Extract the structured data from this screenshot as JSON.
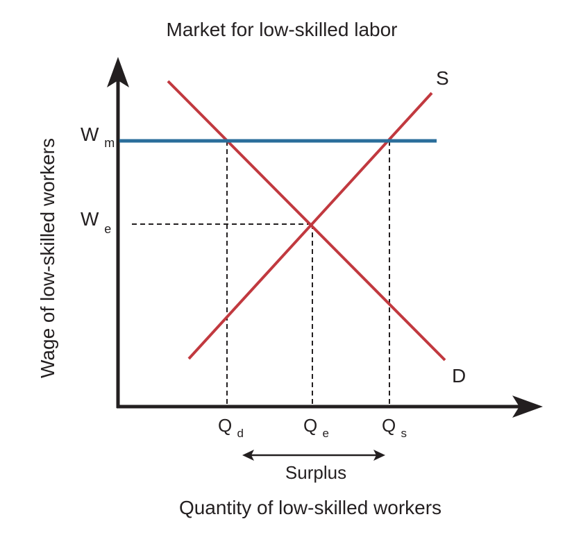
{
  "title": "Market for low-skilled labor",
  "axes": {
    "y_label": "Wage of low-skilled workers",
    "x_label": "Quantity of low-skilled workers"
  },
  "curves": {
    "supply_label": "S",
    "demand_label": "D",
    "supply_color": "#c1393f",
    "demand_color": "#c1393f",
    "min_wage_color": "#2a6e9b"
  },
  "wage_levels": {
    "minimum": {
      "main": "W",
      "sub": "m"
    },
    "equilibrium": {
      "main": "W",
      "sub": "e"
    }
  },
  "quantities": {
    "demanded": {
      "main": "Q",
      "sub": "d"
    },
    "equilibrium": {
      "main": "Q",
      "sub": "e"
    },
    "supplied": {
      "main": "Q",
      "sub": "s"
    }
  },
  "surplus_label": "Surplus",
  "axis_color": "#231f20"
}
